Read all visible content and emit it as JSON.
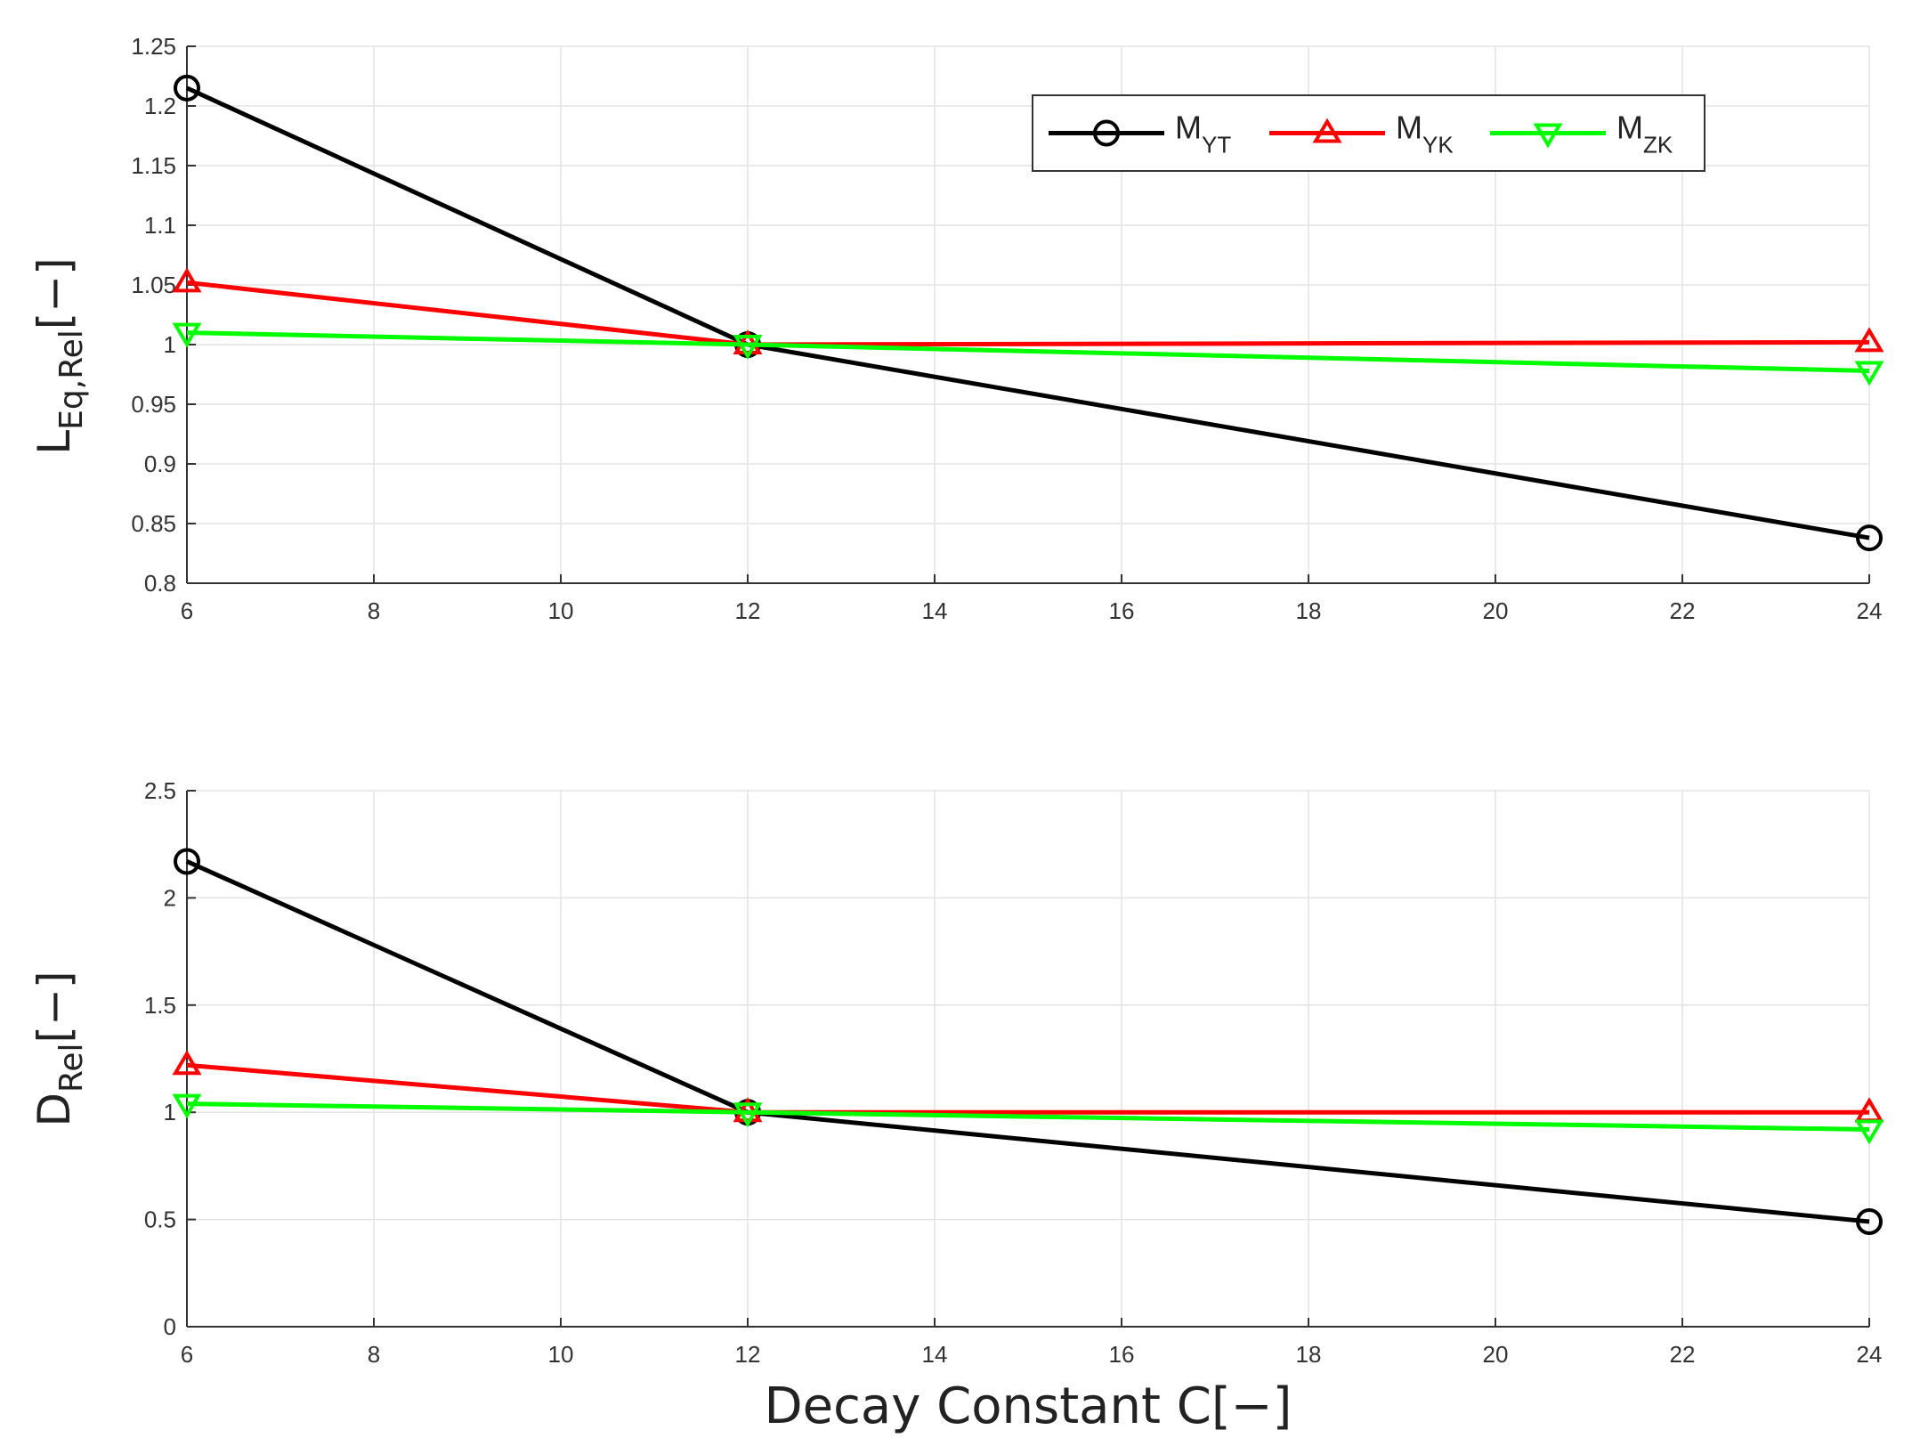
{
  "chart_data": [
    {
      "type": "line",
      "xlabel": "",
      "ylabel": {
        "main": "L",
        "sub": "Eq,Rel",
        "suffix": "[−]"
      },
      "xlim": [
        6,
        24
      ],
      "ylim": [
        0.8,
        1.25
      ],
      "xticks": [
        6,
        8,
        10,
        12,
        14,
        16,
        18,
        20,
        22,
        24
      ],
      "yticks": [
        0.8,
        0.85,
        0.9,
        0.95,
        1,
        1.05,
        1.1,
        1.15,
        1.2,
        1.25
      ],
      "grid": true,
      "legend": {
        "placement": "top-right",
        "entries": [
          {
            "main": "M",
            "sub": "YT",
            "color": "#000000",
            "marker": "circle"
          },
          {
            "main": "M",
            "sub": "YK",
            "color": "#ff0000",
            "marker": "triangle-up"
          },
          {
            "main": "M",
            "sub": "ZK",
            "color": "#00ff00",
            "marker": "triangle-down"
          }
        ]
      },
      "x": [
        6,
        12,
        24
      ],
      "series": [
        {
          "name": "MYT",
          "color": "#000000",
          "marker": "circle",
          "values": [
            1.215,
            1.0,
            0.838
          ]
        },
        {
          "name": "MYK",
          "color": "#ff0000",
          "marker": "triangle-up",
          "values": [
            1.052,
            1.0,
            1.002
          ]
        },
        {
          "name": "MZK",
          "color": "#00ff00",
          "marker": "triangle-down",
          "values": [
            1.01,
            1.0,
            0.978
          ]
        }
      ]
    },
    {
      "type": "line",
      "xlabel": "Decay Constant C[−]",
      "ylabel": {
        "main": "D",
        "sub": "Rel",
        "suffix": "[−]"
      },
      "xlim": [
        6,
        24
      ],
      "ylim": [
        0,
        2.5
      ],
      "xticks": [
        6,
        8,
        10,
        12,
        14,
        16,
        18,
        20,
        22,
        24
      ],
      "yticks": [
        0,
        0.5,
        1,
        1.5,
        2,
        2.5
      ],
      "grid": true,
      "x": [
        6,
        12,
        24
      ],
      "series": [
        {
          "name": "MYT",
          "color": "#000000",
          "marker": "circle",
          "values": [
            2.17,
            1.0,
            0.49
          ]
        },
        {
          "name": "MYK",
          "color": "#ff0000",
          "marker": "triangle-up",
          "values": [
            1.22,
            1.0,
            1.0
          ]
        },
        {
          "name": "MZK",
          "color": "#00ff00",
          "marker": "triangle-down",
          "values": [
            1.04,
            1.0,
            0.92
          ]
        }
      ]
    }
  ]
}
